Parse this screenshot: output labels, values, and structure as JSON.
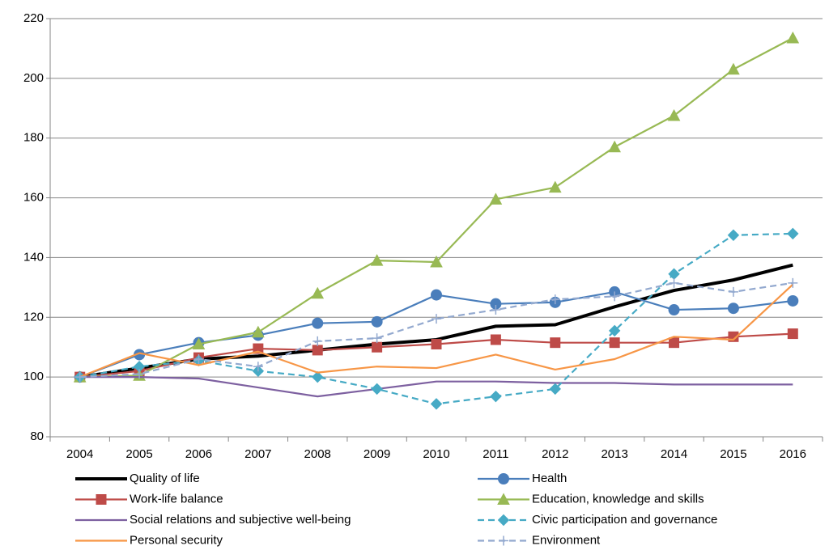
{
  "chart_data": {
    "type": "line",
    "categories": [
      "2004",
      "2005",
      "2006",
      "2007",
      "2008",
      "2009",
      "2010",
      "2011",
      "2012",
      "2013",
      "2014",
      "2015",
      "2016"
    ],
    "ylim": [
      80,
      220
    ],
    "yticks": [
      80,
      100,
      120,
      140,
      160,
      180,
      200,
      220
    ],
    "grid": true,
    "series": [
      {
        "name": "Quality of life",
        "color": "#000000",
        "marker": "none",
        "dashed": false,
        "line_width": 4,
        "values": [
          100,
          103,
          106,
          107,
          109,
          111,
          112.5,
          117,
          117.5,
          123.5,
          129,
          132.5,
          137.5
        ]
      },
      {
        "name": "Health",
        "color": "#4a7ebb",
        "marker": "circle",
        "dashed": false,
        "line_width": 2.2,
        "values": [
          100,
          107.5,
          111.5,
          114,
          118,
          118.5,
          127.5,
          124.5,
          125,
          128.5,
          122.5,
          123,
          125.5
        ]
      },
      {
        "name": "Work-life balance",
        "color": "#be4b48",
        "marker": "square",
        "dashed": false,
        "line_width": 2.2,
        "values": [
          100,
          102,
          106.5,
          109.5,
          109,
          110,
          111,
          112.5,
          111.5,
          111.5,
          111.5,
          113.5,
          114.5
        ]
      },
      {
        "name": "Education, knowledge and skills",
        "color": "#98b954",
        "marker": "triangle",
        "dashed": false,
        "line_width": 2.2,
        "values": [
          100,
          100.5,
          111,
          115,
          128,
          139,
          138.5,
          159.5,
          163.5,
          177,
          187.5,
          203,
          213.5
        ]
      },
      {
        "name": "Social relations and subjective well-being",
        "color": "#7d60a0",
        "marker": "star",
        "dashed": false,
        "line_width": 2.2,
        "values": [
          100,
          100,
          99.5,
          96.5,
          93.5,
          96,
          98.5,
          98.5,
          98,
          98,
          97.5,
          97.5,
          97.5
        ]
      },
      {
        "name": "Civic participation and governance",
        "color": "#46aac5",
        "marker": "diamond",
        "dashed": true,
        "line_width": 2.2,
        "values": [
          100,
          103.5,
          105.5,
          102,
          100,
          96,
          91,
          93.5,
          96,
          115.5,
          134.5,
          147.5,
          148
        ]
      },
      {
        "name": "Personal security",
        "color": "#f79646",
        "marker": "none",
        "dashed": false,
        "line_width": 2.2,
        "values": [
          100,
          108,
          104,
          108.5,
          101.5,
          103.5,
          103,
          107.5,
          102.5,
          106,
          113.5,
          112.5,
          131
        ]
      },
      {
        "name": "Environment",
        "color": "#93a9cf",
        "marker": "plus",
        "dashed": true,
        "line_width": 2.2,
        "values": [
          100,
          101,
          106,
          103.5,
          112,
          113,
          119.5,
          122.5,
          126,
          127,
          131.5,
          128.5,
          131.5
        ]
      }
    ]
  }
}
